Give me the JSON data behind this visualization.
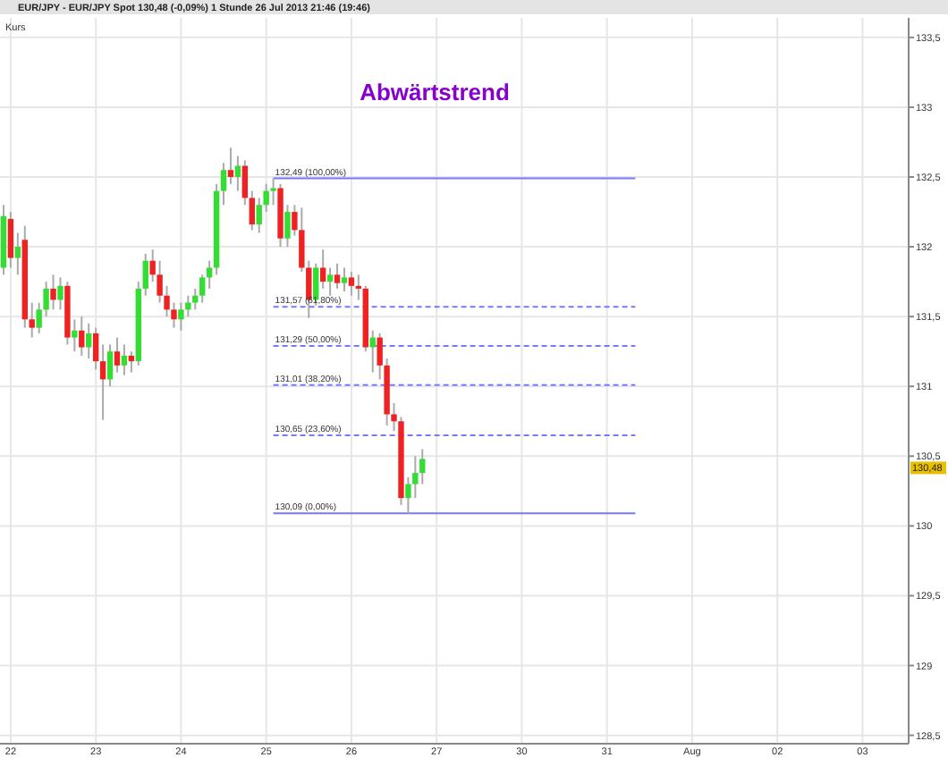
{
  "chart_data": {
    "type": "candlestick",
    "title": "EUR/JPY - EUR/JPY Spot   130,48 (-0,09%)   1 Stunde   26 Jul 2013 21:46 (19:46)",
    "categories": [
      null,
      "22",
      null,
      null,
      null,
      null,
      null,
      null,
      null,
      null,
      null,
      null,
      null,
      "23",
      null,
      null,
      null,
      null,
      null,
      null,
      null,
      null,
      null,
      null,
      null,
      "24",
      null,
      null,
      null,
      null,
      null,
      null,
      null,
      null,
      null,
      null,
      null,
      "25",
      null,
      null,
      null,
      null,
      null,
      null,
      null,
      null,
      null,
      null,
      null,
      "26",
      null,
      null,
      null,
      null,
      null,
      null,
      null,
      null,
      null,
      null,
      null,
      "27",
      null,
      null,
      null,
      null,
      null,
      null,
      null,
      null,
      null,
      null,
      null,
      "30",
      null,
      null,
      null,
      null,
      null,
      null,
      null,
      null,
      null,
      null,
      null,
      "31",
      null,
      null,
      null,
      null,
      null,
      null,
      null,
      null,
      null,
      null,
      null,
      "Aug",
      null,
      null,
      null,
      null,
      null,
      null,
      null,
      null,
      null,
      null,
      null,
      "02",
      null,
      null,
      null,
      null,
      null,
      null,
      null,
      null,
      null,
      null,
      null,
      "03",
      null,
      null,
      null,
      null,
      null,
      null
    ],
    "ohlc": [
      [
        131.85,
        132.3,
        131.8,
        132.22
      ],
      [
        132.2,
        132.25,
        131.85,
        131.92
      ],
      [
        131.92,
        132.1,
        131.8,
        132.0
      ],
      [
        132.05,
        132.15,
        131.42,
        131.48
      ],
      [
        131.48,
        131.6,
        131.35,
        131.42
      ],
      [
        131.42,
        131.6,
        131.38,
        131.55
      ],
      [
        131.55,
        131.75,
        131.5,
        131.7
      ],
      [
        131.7,
        131.8,
        131.55,
        131.62
      ],
      [
        131.62,
        131.78,
        131.55,
        131.72
      ],
      [
        131.72,
        131.75,
        131.3,
        131.35
      ],
      [
        131.35,
        131.48,
        131.25,
        131.4
      ],
      [
        131.4,
        131.5,
        131.22,
        131.28
      ],
      [
        131.28,
        131.45,
        131.2,
        131.38
      ],
      [
        131.38,
        131.42,
        131.12,
        131.18
      ],
      [
        131.18,
        131.3,
        130.76,
        131.05
      ],
      [
        131.05,
        131.3,
        131.0,
        131.25
      ],
      [
        131.25,
        131.35,
        131.1,
        131.15
      ],
      [
        131.15,
        131.3,
        131.08,
        131.22
      ],
      [
        131.22,
        131.25,
        131.1,
        131.18
      ],
      [
        131.18,
        131.75,
        131.15,
        131.7
      ],
      [
        131.7,
        131.95,
        131.65,
        131.9
      ],
      [
        131.9,
        131.98,
        131.75,
        131.8
      ],
      [
        131.8,
        131.9,
        131.6,
        131.65
      ],
      [
        131.65,
        131.72,
        131.5,
        131.55
      ],
      [
        131.55,
        131.6,
        131.42,
        131.48
      ],
      [
        131.48,
        131.6,
        131.4,
        131.55
      ],
      [
        131.55,
        131.65,
        131.5,
        131.6
      ],
      [
        131.6,
        131.7,
        131.55,
        131.65
      ],
      [
        131.65,
        131.8,
        131.6,
        131.78
      ],
      [
        131.78,
        131.9,
        131.7,
        131.85
      ],
      [
        131.85,
        132.45,
        131.8,
        132.4
      ],
      [
        132.4,
        132.6,
        132.3,
        132.55
      ],
      [
        132.55,
        132.71,
        132.45,
        132.5
      ],
      [
        132.5,
        132.65,
        132.4,
        132.58
      ],
      [
        132.58,
        132.62,
        132.3,
        132.35
      ],
      [
        132.35,
        132.4,
        132.12,
        132.16
      ],
      [
        132.16,
        132.35,
        132.1,
        132.3
      ],
      [
        132.3,
        132.45,
        132.25,
        132.4
      ],
      [
        132.4,
        132.49,
        132.3,
        132.42
      ],
      [
        132.42,
        132.45,
        132.0,
        132.06
      ],
      [
        132.06,
        132.3,
        132.0,
        132.25
      ],
      [
        132.25,
        132.3,
        132.08,
        132.12
      ],
      [
        132.12,
        132.28,
        131.82,
        131.85
      ],
      [
        131.85,
        131.9,
        131.49,
        131.62
      ],
      [
        131.62,
        131.88,
        131.58,
        131.85
      ],
      [
        131.85,
        131.98,
        131.7,
        131.75
      ],
      [
        131.75,
        131.85,
        131.65,
        131.8
      ],
      [
        131.8,
        131.88,
        131.7,
        131.74
      ],
      [
        131.74,
        131.85,
        131.68,
        131.78
      ],
      [
        131.78,
        131.82,
        131.65,
        131.72
      ],
      [
        131.72,
        131.8,
        131.62,
        131.7
      ],
      [
        131.7,
        131.72,
        131.25,
        131.28
      ],
      [
        131.28,
        131.4,
        131.1,
        131.35
      ],
      [
        131.35,
        131.38,
        131.05,
        131.15
      ],
      [
        131.15,
        131.2,
        130.72,
        130.8
      ],
      [
        130.8,
        130.88,
        130.68,
        130.75
      ],
      [
        130.75,
        130.78,
        130.15,
        130.2
      ],
      [
        130.2,
        130.35,
        130.09,
        130.3
      ],
      [
        130.3,
        130.5,
        130.2,
        130.38
      ],
      [
        130.38,
        130.55,
        130.3,
        130.48
      ],
      null,
      null,
      null,
      null,
      null,
      null,
      null,
      null,
      null,
      null,
      null,
      null,
      null,
      null,
      null,
      null,
      null,
      null,
      null,
      null,
      null,
      null,
      null,
      null,
      null,
      null,
      null,
      null,
      null,
      null,
      null,
      null,
      null,
      null,
      null,
      null,
      null,
      null,
      null,
      null,
      null,
      null,
      null,
      null,
      null,
      null,
      null,
      null,
      null,
      null,
      null,
      null,
      null,
      null,
      null,
      null,
      null,
      null,
      null,
      null,
      null,
      null,
      null,
      null,
      null,
      null,
      null,
      null
    ],
    "colors": [
      "#33dd33",
      "#ee2222",
      "#33dd33",
      "#ee2222",
      "#ee2222",
      "#33dd33",
      "#33dd33",
      "#ee2222",
      "#33dd33",
      "#ee2222",
      "#33dd33",
      "#ee2222",
      "#33dd33",
      "#ee2222",
      "#ee2222",
      "#33dd33",
      "#ee2222",
      "#33dd33",
      "#ee2222",
      "#33dd33",
      "#33dd33",
      "#ee2222",
      "#ee2222",
      "#ee2222",
      "#ee2222",
      "#33dd33",
      "#33dd33",
      "#33dd33",
      "#33dd33",
      "#33dd33",
      "#33dd33",
      "#33dd33",
      "#ee2222",
      "#33dd33",
      "#ee2222",
      "#ee2222",
      "#33dd33",
      "#33dd33",
      "#33dd33",
      "#ee2222",
      "#33dd33",
      "#ee2222",
      "#ee2222",
      "#ee2222",
      "#33dd33",
      "#ee2222",
      "#33dd33",
      "#ee2222",
      "#33dd33",
      "#ee2222",
      "#ee2222",
      "#ee2222",
      "#33dd33",
      "#ee2222",
      "#ee2222",
      "#ee2222",
      "#ee2222",
      "#33dd33",
      "#33dd33",
      "#33dd33",
      null,
      null,
      null,
      null,
      null,
      null,
      null,
      null,
      null,
      null,
      null,
      null,
      null,
      null,
      null,
      null,
      null,
      null,
      null,
      null,
      null,
      null,
      null,
      null,
      null,
      null,
      null,
      null,
      null,
      null,
      null,
      null,
      null,
      null,
      null,
      null,
      null,
      null,
      null,
      null,
      null,
      null,
      null,
      null,
      null,
      null,
      null,
      null,
      null,
      null,
      null,
      null,
      null,
      null,
      null,
      null,
      null,
      null,
      null,
      null,
      null,
      null,
      null,
      null,
      null,
      null,
      null,
      null
    ],
    "series": [
      {
        "type": "line",
        "color": "#7777ff",
        "line_style": "solid",
        "values": [
          null,
          null,
          null,
          null,
          null,
          null,
          null,
          null,
          null,
          null,
          null,
          null,
          null,
          null,
          null,
          null,
          null,
          null,
          null,
          null,
          null,
          null,
          null,
          null,
          null,
          null,
          null,
          null,
          null,
          null,
          null,
          null,
          null,
          null,
          null,
          null,
          null,
          null,
          132.49,
          132.49,
          132.49,
          132.49,
          132.49,
          132.49,
          132.49,
          132.49,
          132.49,
          132.49,
          132.49,
          132.49,
          132.49,
          132.49,
          132.49,
          132.49,
          132.49,
          132.49,
          132.49,
          132.49,
          132.49,
          132.49,
          132.49,
          132.49,
          132.49,
          132.49,
          132.49,
          132.49,
          132.49,
          132.49,
          132.49,
          132.49,
          132.49,
          132.49,
          132.49,
          132.49,
          132.49,
          132.49,
          132.49,
          132.49,
          132.49,
          132.49,
          132.49,
          132.49,
          132.49,
          132.49,
          132.49,
          132.49,
          132.49,
          132.49,
          132.49,
          132.49,
          null,
          null,
          null,
          null,
          null,
          null,
          null,
          null,
          null,
          null,
          null,
          null,
          null,
          null,
          null,
          null,
          null,
          null,
          null,
          null,
          null,
          null,
          null,
          null,
          null,
          null,
          null,
          null,
          null,
          null,
          null,
          null,
          null,
          null,
          null,
          null,
          null,
          null
        ]
      },
      {
        "type": "line",
        "color": "#7777ff",
        "line_style": "dashed",
        "values": [
          null,
          null,
          null,
          null,
          null,
          null,
          null,
          null,
          null,
          null,
          null,
          null,
          null,
          null,
          null,
          null,
          null,
          null,
          null,
          null,
          null,
          null,
          null,
          null,
          null,
          null,
          null,
          null,
          null,
          null,
          null,
          null,
          null,
          null,
          null,
          null,
          null,
          null,
          131.57,
          131.57,
          131.57,
          131.57,
          131.57,
          131.57,
          131.57,
          131.57,
          131.57,
          131.57,
          131.57,
          131.57,
          131.57,
          131.57,
          131.57,
          131.57,
          131.57,
          131.57,
          131.57,
          131.57,
          131.57,
          131.57,
          131.57,
          131.57,
          131.57,
          131.57,
          131.57,
          131.57,
          131.57,
          131.57,
          131.57,
          131.57,
          131.57,
          131.57,
          131.57,
          131.57,
          131.57,
          131.57,
          131.57,
          131.57,
          131.57,
          131.57,
          131.57,
          131.57,
          131.57,
          131.57,
          131.57,
          131.57,
          131.57,
          131.57,
          131.57,
          131.57,
          null,
          null,
          null,
          null,
          null,
          null,
          null,
          null,
          null,
          null,
          null,
          null,
          null,
          null,
          null,
          null,
          null,
          null,
          null,
          null,
          null,
          null,
          null,
          null,
          null,
          null,
          null,
          null,
          null,
          null,
          null,
          null,
          null,
          null,
          null,
          null,
          null,
          null
        ]
      },
      {
        "type": "line",
        "color": "#7777ff",
        "line_style": "dashed",
        "values": [
          null,
          null,
          null,
          null,
          null,
          null,
          null,
          null,
          null,
          null,
          null,
          null,
          null,
          null,
          null,
          null,
          null,
          null,
          null,
          null,
          null,
          null,
          null,
          null,
          null,
          null,
          null,
          null,
          null,
          null,
          null,
          null,
          null,
          null,
          null,
          null,
          null,
          null,
          131.29,
          131.29,
          131.29,
          131.29,
          131.29,
          131.29,
          131.29,
          131.29,
          131.29,
          131.29,
          131.29,
          131.29,
          131.29,
          131.29,
          131.29,
          131.29,
          131.29,
          131.29,
          131.29,
          131.29,
          131.29,
          131.29,
          131.29,
          131.29,
          131.29,
          131.29,
          131.29,
          131.29,
          131.29,
          131.29,
          131.29,
          131.29,
          131.29,
          131.29,
          131.29,
          131.29,
          131.29,
          131.29,
          131.29,
          131.29,
          131.29,
          131.29,
          131.29,
          131.29,
          131.29,
          131.29,
          131.29,
          131.29,
          131.29,
          131.29,
          131.29,
          131.29,
          null,
          null,
          null,
          null,
          null,
          null,
          null,
          null,
          null,
          null,
          null,
          null,
          null,
          null,
          null,
          null,
          null,
          null,
          null,
          null,
          null,
          null,
          null,
          null,
          null,
          null,
          null,
          null,
          null,
          null,
          null,
          null,
          null,
          null,
          null,
          null,
          null,
          null
        ]
      },
      {
        "type": "line",
        "color": "#7777ff",
        "line_style": "dashed",
        "values": [
          null,
          null,
          null,
          null,
          null,
          null,
          null,
          null,
          null,
          null,
          null,
          null,
          null,
          null,
          null,
          null,
          null,
          null,
          null,
          null,
          null,
          null,
          null,
          null,
          null,
          null,
          null,
          null,
          null,
          null,
          null,
          null,
          null,
          null,
          null,
          null,
          null,
          null,
          131.01,
          131.01,
          131.01,
          131.01,
          131.01,
          131.01,
          131.01,
          131.01,
          131.01,
          131.01,
          131.01,
          131.01,
          131.01,
          131.01,
          131.01,
          131.01,
          131.01,
          131.01,
          131.01,
          131.01,
          131.01,
          131.01,
          131.01,
          131.01,
          131.01,
          131.01,
          131.01,
          131.01,
          131.01,
          131.01,
          131.01,
          131.01,
          131.01,
          131.01,
          131.01,
          131.01,
          131.01,
          131.01,
          131.01,
          131.01,
          131.01,
          131.01,
          131.01,
          131.01,
          131.01,
          131.01,
          131.01,
          131.01,
          131.01,
          131.01,
          131.01,
          131.01,
          null,
          null,
          null,
          null,
          null,
          null,
          null,
          null,
          null,
          null,
          null,
          null,
          null,
          null,
          null,
          null,
          null,
          null,
          null,
          null,
          null,
          null,
          null,
          null,
          null,
          null,
          null,
          null,
          null,
          null,
          null,
          null,
          null,
          null,
          null,
          null,
          null,
          null
        ]
      },
      {
        "type": "line",
        "color": "#7777ff",
        "line_style": "dashed",
        "values": [
          null,
          null,
          null,
          null,
          null,
          null,
          null,
          null,
          null,
          null,
          null,
          null,
          null,
          null,
          null,
          null,
          null,
          null,
          null,
          null,
          null,
          null,
          null,
          null,
          null,
          null,
          null,
          null,
          null,
          null,
          null,
          null,
          null,
          null,
          null,
          null,
          null,
          null,
          130.65,
          130.65,
          130.65,
          130.65,
          130.65,
          130.65,
          130.65,
          130.65,
          130.65,
          130.65,
          130.65,
          130.65,
          130.65,
          130.65,
          130.65,
          130.65,
          130.65,
          130.65,
          130.65,
          130.65,
          130.65,
          130.65,
          130.65,
          130.65,
          130.65,
          130.65,
          130.65,
          130.65,
          130.65,
          130.65,
          130.65,
          130.65,
          130.65,
          130.65,
          130.65,
          130.65,
          130.65,
          130.65,
          130.65,
          130.65,
          130.65,
          130.65,
          130.65,
          130.65,
          130.65,
          130.65,
          130.65,
          130.65,
          130.65,
          130.65,
          130.65,
          130.65,
          null,
          null,
          null,
          null,
          null,
          null,
          null,
          null,
          null,
          null,
          null,
          null,
          null,
          null,
          null,
          null,
          null,
          null,
          null,
          null,
          null,
          null,
          null,
          null,
          null,
          null,
          null,
          null,
          null,
          null,
          null,
          null,
          null,
          null,
          null,
          null,
          null,
          null
        ]
      },
      {
        "type": "line",
        "color": "#7777ff",
        "line_style": "solid",
        "values": [
          null,
          null,
          null,
          null,
          null,
          null,
          null,
          null,
          null,
          null,
          null,
          null,
          null,
          null,
          null,
          null,
          null,
          null,
          null,
          null,
          null,
          null,
          null,
          null,
          null,
          null,
          null,
          null,
          null,
          null,
          null,
          null,
          null,
          null,
          null,
          null,
          null,
          null,
          130.09,
          130.09,
          130.09,
          130.09,
          130.09,
          130.09,
          130.09,
          130.09,
          130.09,
          130.09,
          130.09,
          130.09,
          130.09,
          130.09,
          130.09,
          130.09,
          130.09,
          130.09,
          130.09,
          130.09,
          130.09,
          130.09,
          130.09,
          130.09,
          130.09,
          130.09,
          130.09,
          130.09,
          130.09,
          130.09,
          130.09,
          130.09,
          130.09,
          130.09,
          130.09,
          130.09,
          130.09,
          130.09,
          130.09,
          130.09,
          130.09,
          130.09,
          130.09,
          130.09,
          130.09,
          130.09,
          130.09,
          130.09,
          130.09,
          130.09,
          130.09,
          130.09,
          null,
          null,
          null,
          null,
          null,
          null,
          null,
          null,
          null,
          null,
          null,
          null,
          null,
          null,
          null,
          null,
          null,
          null,
          null,
          null,
          null,
          null,
          null,
          null,
          null,
          null,
          null,
          null,
          null,
          null,
          null,
          null,
          null,
          null,
          null,
          null,
          null,
          null
        ]
      }
    ],
    "annotations": [
      "Kurs",
      "Abwärtstrend",
      {
        "text": "132,49 (100,00%)",
        "y": 132.49
      },
      {
        "text": "131,57 (61,80%)",
        "y": 131.57
      },
      {
        "text": "131,29 (50,00%)",
        "y": 131.29
      },
      {
        "text": "131,01 (38,20%)",
        "y": 131.01
      },
      {
        "text": "130,65 (23,60%)",
        "y": 130.65
      },
      {
        "text": "130,09 (0,00%)",
        "y": 130.09
      },
      "130,48"
    ],
    "ylim": [
      128.44,
      133.64
    ],
    "yticks": [
      {
        "value": 128.5,
        "label": "128,5"
      },
      {
        "value": 129,
        "label": "129"
      },
      {
        "value": 129.5,
        "label": "129,5"
      },
      {
        "value": 130,
        "label": "130"
      },
      {
        "value": 130.5,
        "label": "130,5"
      },
      {
        "value": 131,
        "label": "131"
      },
      {
        "value": 131.5,
        "label": "131,5"
      },
      {
        "value": 132,
        "label": "132"
      },
      {
        "value": 132.5,
        "label": "132,5"
      },
      {
        "value": 133,
        "label": "133"
      },
      {
        "value": 133.5,
        "label": "133,5"
      }
    ],
    "grid": true
  }
}
